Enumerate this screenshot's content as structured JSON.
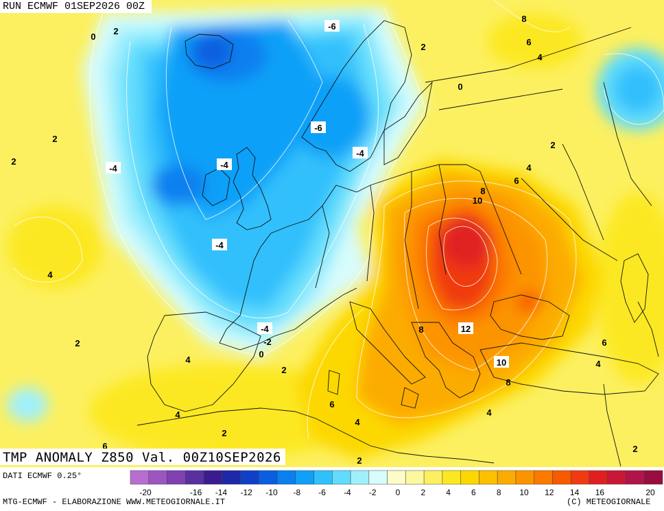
{
  "run_title": "RUN ECMWF 01SEP2026 00Z",
  "map_title": "TMP ANOMALY Z850 Val. 00Z10SEP2026",
  "footer": {
    "data_source": "DATI ECMWF 0.25°",
    "credit_left": "MTG-ECMWF - ELABORAZIONE WWW.METEOGIORNALE.IT",
    "credit_right": "(C) METEOGIORNALE"
  },
  "legend": {
    "ticks": [
      "-20",
      "-18",
      "-16",
      "-14",
      "-12",
      "-10",
      "-8",
      "-6",
      "-4",
      "-2",
      "0",
      "2",
      "4",
      "6",
      "8",
      "10",
      "12",
      "14",
      "16",
      "18",
      "20"
    ],
    "tick_labels": [
      "-20",
      "-16",
      "-14",
      "-12",
      "-10",
      "-8",
      "-6",
      "-4",
      "-2",
      "0",
      "2",
      "4",
      "6",
      "8",
      "10",
      "12",
      "14",
      "16",
      "20"
    ],
    "colors": [
      "#b86ed0",
      "#9c56c0",
      "#8040b0",
      "#5a2fa0",
      "#3a1c90",
      "#1c28a8",
      "#1040c8",
      "#0a5ee0",
      "#0a80f0",
      "#10a0f8",
      "#30c0fc",
      "#60dcfc",
      "#a0f0fc",
      "#d8fcfc",
      "#fcfcc8",
      "#fcf8a0",
      "#fcf060",
      "#fce820",
      "#fcd800",
      "#fcc000",
      "#fcac00",
      "#fc9400",
      "#fc7a00",
      "#f85a00",
      "#f03a10",
      "#e02020",
      "#c81838",
      "#b01448",
      "#980c40"
    ]
  },
  "contour_labels": [
    {
      "text": "-6",
      "boxed": true
    },
    {
      "text": "-6",
      "boxed": true
    },
    {
      "text": "-4",
      "boxed": true
    },
    {
      "text": "-4",
      "boxed": true
    },
    {
      "text": "-4",
      "boxed": true
    },
    {
      "text": "-4",
      "boxed": true
    },
    {
      "text": "-4",
      "boxed": true
    },
    {
      "text": "-2",
      "boxed": false
    },
    {
      "text": "0",
      "boxed": false
    },
    {
      "text": "0",
      "boxed": false
    },
    {
      "text": "0",
      "boxed": false
    },
    {
      "text": "2",
      "boxed": false
    },
    {
      "text": "2",
      "boxed": false
    },
    {
      "text": "2",
      "boxed": false
    },
    {
      "text": "2",
      "boxed": false
    },
    {
      "text": "2",
      "boxed": false
    },
    {
      "text": "2",
      "boxed": false
    },
    {
      "text": "2",
      "boxed": false
    },
    {
      "text": "2",
      "boxed": false
    },
    {
      "text": "2",
      "boxed": false
    },
    {
      "text": "2",
      "boxed": false
    },
    {
      "text": "4",
      "boxed": false
    },
    {
      "text": "4",
      "boxed": false
    },
    {
      "text": "4",
      "boxed": false
    },
    {
      "text": "4",
      "boxed": false
    },
    {
      "text": "4",
      "boxed": false
    },
    {
      "text": "4",
      "boxed": false
    },
    {
      "text": "4",
      "boxed": false
    },
    {
      "text": "4",
      "boxed": false
    },
    {
      "text": "6",
      "boxed": false
    },
    {
      "text": "6",
      "boxed": false
    },
    {
      "text": "6",
      "boxed": false
    },
    {
      "text": "6",
      "boxed": false
    },
    {
      "text": "6",
      "boxed": false
    },
    {
      "text": "8",
      "boxed": false
    },
    {
      "text": "8",
      "boxed": false
    },
    {
      "text": "8",
      "boxed": false
    },
    {
      "text": "8",
      "boxed": false
    },
    {
      "text": "10",
      "boxed": true
    },
    {
      "text": "10",
      "boxed": false
    },
    {
      "text": "12",
      "boxed": true
    }
  ]
}
